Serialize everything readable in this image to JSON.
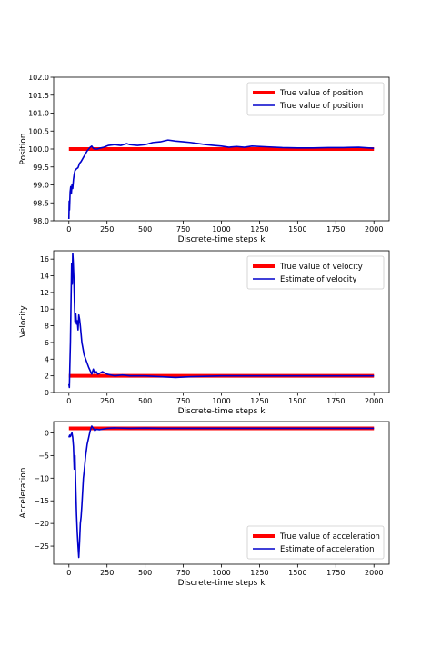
{
  "chart_data": [
    {
      "type": "line",
      "xlabel": "Discrete-time steps k",
      "ylabel": "Position",
      "xlim": [
        -100,
        2100
      ],
      "ylim": [
        98.0,
        102.0
      ],
      "xticks": [
        0,
        250,
        500,
        750,
        1000,
        1250,
        1500,
        1750,
        2000
      ],
      "yticks": [
        98.0,
        98.5,
        99.0,
        99.5,
        100.0,
        100.5,
        101.0,
        101.5,
        102.0
      ],
      "ytick_decimals": 1,
      "grid": false,
      "legend_position": "top-right",
      "series": [
        {
          "name": "True value of position",
          "color": "#ff0000",
          "role": "truth",
          "x": [
            0,
            2000
          ],
          "y": [
            100.0,
            100.0
          ]
        },
        {
          "name": "True value of position",
          "color": "#0000cc",
          "role": "estimate",
          "x": [
            0,
            2,
            4,
            8,
            12,
            16,
            20,
            25,
            30,
            35,
            40,
            50,
            60,
            70,
            80,
            100,
            120,
            140,
            150,
            160,
            170,
            185,
            200,
            230,
            260,
            300,
            340,
            380,
            400,
            450,
            500,
            550,
            600,
            650,
            700,
            750,
            800,
            850,
            900,
            950,
            1000,
            1050,
            1100,
            1150,
            1200,
            1300,
            1400,
            1500,
            1600,
            1700,
            1800,
            1900,
            2000
          ],
          "y": [
            98.05,
            98.55,
            98.3,
            98.8,
            98.95,
            98.75,
            99.0,
            98.9,
            99.15,
            99.3,
            99.4,
            99.45,
            99.48,
            99.6,
            99.65,
            99.8,
            99.95,
            100.05,
            100.08,
            100.02,
            100.0,
            100.0,
            100.02,
            100.05,
            100.1,
            100.12,
            100.1,
            100.15,
            100.12,
            100.1,
            100.12,
            100.18,
            100.2,
            100.25,
            100.22,
            100.2,
            100.18,
            100.15,
            100.12,
            100.1,
            100.08,
            100.05,
            100.07,
            100.05,
            100.08,
            100.06,
            100.04,
            100.03,
            100.03,
            100.04,
            100.04,
            100.05,
            100.02
          ]
        }
      ]
    },
    {
      "type": "line",
      "xlabel": "Discrete-time steps k",
      "ylabel": "Velocity",
      "xlim": [
        -100,
        2100
      ],
      "ylim": [
        0,
        17
      ],
      "xticks": [
        0,
        250,
        500,
        750,
        1000,
        1250,
        1500,
        1750,
        2000
      ],
      "yticks": [
        0,
        2,
        4,
        6,
        8,
        10,
        12,
        14,
        16
      ],
      "ytick_decimals": 0,
      "grid": false,
      "legend_position": "top-right",
      "series": [
        {
          "name": "True value of velocity",
          "color": "#ff0000",
          "role": "truth",
          "x": [
            0,
            2000
          ],
          "y": [
            2.0,
            2.0
          ]
        },
        {
          "name": "Estimate of velocity",
          "color": "#0000cc",
          "role": "estimate",
          "x": [
            0,
            3,
            6,
            10,
            14,
            18,
            22,
            25,
            28,
            32,
            36,
            40,
            45,
            50,
            55,
            60,
            65,
            70,
            75,
            80,
            85,
            90,
            100,
            110,
            120,
            130,
            140,
            150,
            160,
            170,
            180,
            190,
            200,
            220,
            250,
            300,
            350,
            400,
            500,
            600,
            700,
            800,
            1000,
            1500,
            2000
          ],
          "y": [
            1.0,
            0.6,
            3.0,
            6.0,
            11.0,
            15.5,
            13.0,
            16.7,
            15.8,
            14.0,
            11.0,
            8.5,
            9.5,
            8.2,
            8.6,
            7.5,
            9.3,
            8.8,
            8.0,
            7.0,
            6.0,
            5.5,
            4.5,
            4.0,
            3.5,
            3.0,
            2.6,
            2.2,
            2.8,
            2.3,
            2.5,
            2.2,
            2.3,
            2.5,
            2.2,
            2.0,
            2.1,
            2.0,
            2.0,
            1.9,
            1.8,
            1.9,
            2.0,
            2.0,
            2.0
          ]
        }
      ]
    },
    {
      "type": "line",
      "xlabel": "Discrete-time steps k",
      "ylabel": "Acceleration",
      "xlim": [
        -100,
        2100
      ],
      "ylim": [
        -29,
        2.5
      ],
      "xticks": [
        0,
        250,
        500,
        750,
        1000,
        1250,
        1500,
        1750,
        2000
      ],
      "yticks": [
        -25,
        -20,
        -15,
        -10,
        -5,
        0
      ],
      "ytick_decimals": 0,
      "grid": false,
      "legend_position": "bottom-right",
      "series": [
        {
          "name": "True value of acceleration",
          "color": "#ff0000",
          "role": "truth",
          "x": [
            0,
            2000
          ],
          "y": [
            1.0,
            1.0
          ]
        },
        {
          "name": "Estimate of acceleration",
          "color": "#0000cc",
          "role": "estimate",
          "x": [
            0,
            5,
            10,
            15,
            20,
            25,
            30,
            35,
            40,
            45,
            50,
            55,
            60,
            65,
            70,
            75,
            80,
            85,
            90,
            95,
            100,
            110,
            120,
            130,
            140,
            150,
            160,
            170,
            180,
            200,
            250,
            300,
            400,
            500,
            600,
            800,
            1000,
            1500,
            2000
          ],
          "y": [
            -1.0,
            -0.5,
            -0.8,
            -0.3,
            0.0,
            -1.0,
            -3.0,
            -8.0,
            -5.0,
            -12.0,
            -18.0,
            -22.0,
            -25.0,
            -27.5,
            -24.0,
            -20.0,
            -18.5,
            -16.0,
            -13.0,
            -10.0,
            -8.5,
            -5.0,
            -2.5,
            -1.0,
            0.5,
            1.5,
            1.0,
            0.5,
            0.8,
            0.7,
            1.0,
            1.1,
            1.0,
            1.05,
            1.0,
            1.0,
            1.0,
            1.0,
            1.0
          ]
        }
      ]
    }
  ]
}
